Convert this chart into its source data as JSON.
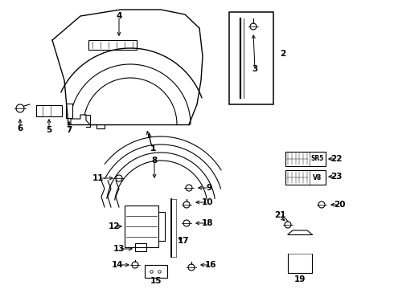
{
  "bg_color": "#ffffff",
  "line_color": "#000000",
  "fig_width": 4.9,
  "fig_height": 3.6,
  "dpi": 100
}
